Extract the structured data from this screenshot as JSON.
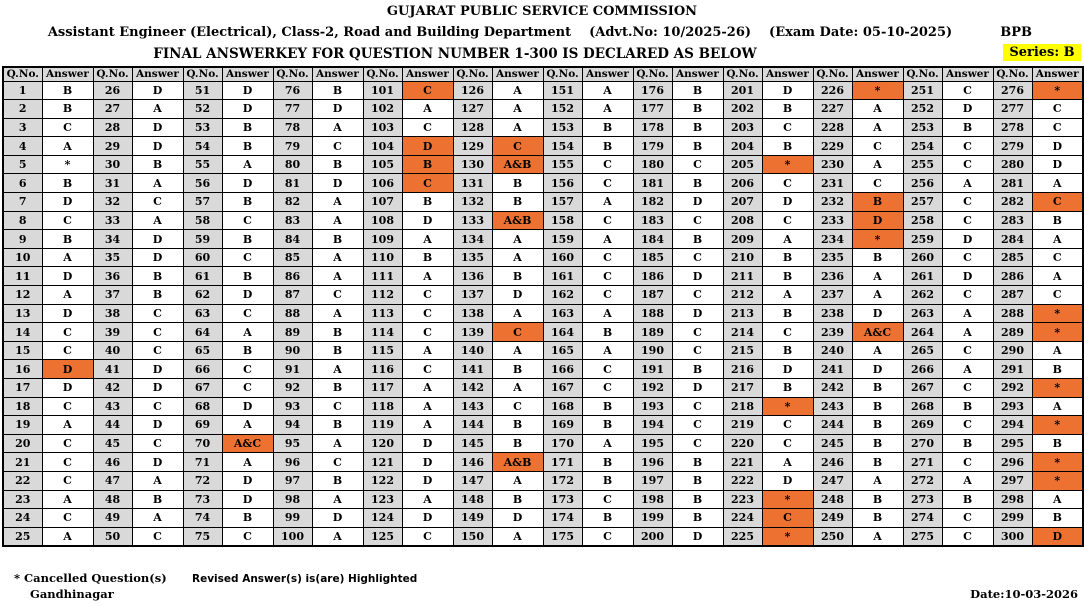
{
  "header": {
    "org": "GUJARAT PUBLIC SERVICE COMMISSION",
    "post": "Assistant Engineer (Electrical), Class-2, Road and Building Department",
    "advt": "(Advt.No: 10/2025-26)",
    "exam_date": "(Exam Date: 05-10-2025)",
    "paper_code": "BPB",
    "declaration": "FINAL ANSWERKEY FOR QUESTION NUMBER 1-300 IS DECLARED AS BELOW",
    "series": "Series: B"
  },
  "table": {
    "qno_header": "Q.No.",
    "answer_header": "Answer",
    "column_pairs": 12,
    "rows_per_column": 25,
    "answers": [
      "B",
      "B",
      "C",
      "A",
      "*",
      "B",
      "D",
      "C",
      "B",
      "A",
      "D",
      "A",
      "D",
      "C",
      "C",
      "D",
      "D",
      "C",
      "A",
      "C",
      "C",
      "C",
      "A",
      "C",
      "A",
      "D",
      "A",
      "D",
      "D",
      "B",
      "A",
      "C",
      "A",
      "D",
      "D",
      "B",
      "B",
      "C",
      "C",
      "C",
      "D",
      "D",
      "C",
      "D",
      "C",
      "D",
      "A",
      "B",
      "A",
      "C",
      "D",
      "D",
      "B",
      "B",
      "A",
      "D",
      "B",
      "C",
      "B",
      "C",
      "B",
      "D",
      "C",
      "A",
      "B",
      "C",
      "C",
      "D",
      "A",
      "A&C",
      "A",
      "D",
      "D",
      "B",
      "C",
      "B",
      "D",
      "A",
      "C",
      "B",
      "D",
      "A",
      "A",
      "B",
      "A",
      "A",
      "C",
      "A",
      "B",
      "B",
      "A",
      "B",
      "C",
      "B",
      "A",
      "C",
      "B",
      "A",
      "D",
      "A",
      "C",
      "A",
      "C",
      "D",
      "B",
      "C",
      "B",
      "D",
      "A",
      "B",
      "A",
      "C",
      "C",
      "C",
      "A",
      "C",
      "A",
      "A",
      "A",
      "D",
      "D",
      "D",
      "A",
      "D",
      "C",
      "A",
      "A",
      "A",
      "C",
      "A&B",
      "B",
      "B",
      "A&B",
      "A",
      "A",
      "B",
      "D",
      "A",
      "C",
      "A",
      "B",
      "A",
      "C",
      "B",
      "B",
      "A&B",
      "A",
      "B",
      "D",
      "A",
      "A",
      "A",
      "B",
      "B",
      "C",
      "C",
      "A",
      "C",
      "A",
      "C",
      "C",
      "C",
      "A",
      "B",
      "A",
      "C",
      "C",
      "B",
      "B",
      "A",
      "B",
      "B",
      "C",
      "B",
      "C",
      "B",
      "B",
      "B",
      "B",
      "C",
      "B",
      "D",
      "C",
      "B",
      "C",
      "D",
      "C",
      "D",
      "C",
      "C",
      "B",
      "D",
      "C",
      "C",
      "C",
      "B",
      "B",
      "B",
      "B",
      "D",
      "D",
      "B",
      "C",
      "B",
      "*",
      "C",
      "D",
      "C",
      "A",
      "B",
      "B",
      "A",
      "B",
      "C",
      "B",
      "D",
      "B",
      "*",
      "C",
      "C",
      "A",
      "D",
      "*",
      "C",
      "*",
      "*",
      "A",
      "A",
      "C",
      "A",
      "C",
      "B",
      "D",
      "*",
      "B",
      "A",
      "A",
      "D",
      "A&C",
      "A",
      "D",
      "B",
      "B",
      "B",
      "B",
      "B",
      "A",
      "B",
      "B",
      "A",
      "C",
      "D",
      "B",
      "C",
      "C",
      "A",
      "C",
      "C",
      "D",
      "C",
      "D",
      "C",
      "A",
      "A",
      "C",
      "A",
      "C",
      "B",
      "C",
      "B",
      "C",
      "A",
      "B",
      "C",
      "C",
      "*",
      "C",
      "C",
      "D",
      "D",
      "A",
      "C",
      "B",
      "A",
      "C",
      "A",
      "C",
      "*",
      "*",
      "A",
      "B",
      "*",
      "A",
      "*",
      "B",
      "*",
      "*",
      "A",
      "B",
      "D"
    ],
    "highlighted": [
      16,
      70,
      101,
      104,
      105,
      106,
      129,
      130,
      133,
      139,
      146,
      205,
      218,
      223,
      224,
      225,
      226,
      232,
      233,
      234,
      239,
      276,
      282,
      288,
      289,
      292,
      294,
      296,
      297,
      300
    ]
  },
  "footer": {
    "cancelled_note": "* Cancelled Question(s)",
    "revised_note": "Revised Answer(s) is(are) Highlighted",
    "place": "Gandhinagar",
    "date": "Date:10-03-2026"
  },
  "colors": {
    "highlight": "#ED7232",
    "qno_bg": "#D9D9D9",
    "series_bg": "#FFFF00",
    "border": "#000000"
  }
}
